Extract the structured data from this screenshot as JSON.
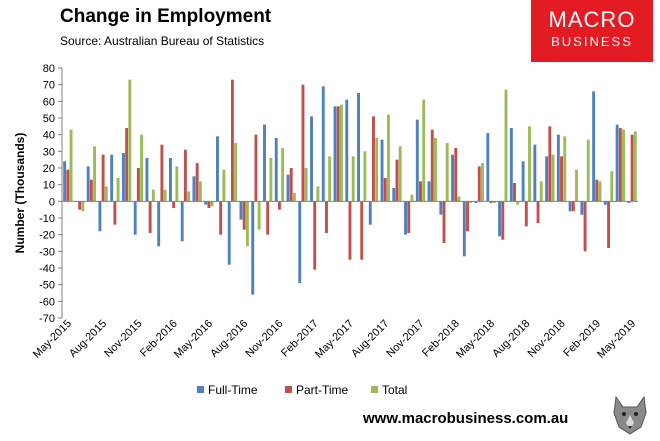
{
  "header": {
    "title": "Change in Employment",
    "source": "Source: Australian Bureau of Statistics"
  },
  "logo": {
    "line1": "MACRO",
    "line2": "BUSINESS"
  },
  "footer": {
    "website": "www.macrobusiness.com.au",
    "mascot_icon": "wolf-icon"
  },
  "colors": {
    "full_time": "#4f81bd",
    "part_time": "#c0504d",
    "total": "#9bbb59"
  },
  "chart_data": {
    "type": "bar",
    "title": "Change in Employment",
    "xlabel": "",
    "ylabel": "Number (Thousands)",
    "ylim": [
      -70,
      80
    ],
    "yticks": [
      -70,
      -60,
      -50,
      -40,
      -30,
      -20,
      -10,
      0,
      10,
      20,
      30,
      40,
      50,
      60,
      70,
      80
    ],
    "grid": false,
    "legend": "bottom",
    "categories": [
      "May-2015",
      "Jun-2015",
      "Jul-2015",
      "Aug-2015",
      "Sep-2015",
      "Oct-2015",
      "Nov-2015",
      "Dec-2015",
      "Jan-2016",
      "Feb-2016",
      "Mar-2016",
      "Apr-2016",
      "May-2016",
      "Jun-2016",
      "Jul-2016",
      "Aug-2016",
      "Sep-2016",
      "Oct-2016",
      "Nov-2016",
      "Dec-2016",
      "Jan-2017",
      "Feb-2017",
      "Mar-2017",
      "Apr-2017",
      "May-2017",
      "Jun-2017",
      "Jul-2017",
      "Aug-2017",
      "Sep-2017",
      "Oct-2017",
      "Nov-2017",
      "Dec-2017",
      "Jan-2018",
      "Feb-2018",
      "Mar-2018",
      "Apr-2018",
      "May-2018",
      "Jun-2018",
      "Jul-2018",
      "Aug-2018",
      "Sep-2018",
      "Oct-2018",
      "Nov-2018",
      "Dec-2018",
      "Jan-2019",
      "Feb-2019",
      "Mar-2019",
      "Apr-2019",
      "May-2019"
    ],
    "tick_labels": [
      "May-2015",
      "Aug-2015",
      "Nov-2015",
      "Feb-2016",
      "May-2016",
      "Aug-2016",
      "Nov-2016",
      "Feb-2017",
      "May-2017",
      "Aug-2017",
      "Nov-2017",
      "Feb-2018",
      "May-2018",
      "Aug-2018",
      "Nov-2018",
      "Feb-2019",
      "May-2019"
    ],
    "series": [
      {
        "name": "Full-Time",
        "values": [
          24,
          0,
          21,
          -18,
          28,
          29,
          -20,
          26,
          -27,
          26,
          -24,
          15,
          -2,
          39,
          -38,
          -11,
          -56,
          46,
          38,
          16,
          -49,
          51,
          69,
          57,
          61,
          65,
          -14,
          37,
          8,
          -20,
          49,
          12,
          -8,
          28,
          -33,
          -1,
          41,
          -21,
          44,
          24,
          34,
          27,
          40,
          -6,
          -8,
          66,
          -2,
          46,
          -1
        ]
      },
      {
        "name": "Part-Time",
        "values": [
          19,
          -5,
          13,
          28,
          -14,
          44,
          20,
          -19,
          34,
          -4,
          31,
          23,
          -4,
          -20,
          73,
          -17,
          40,
          -20,
          -5,
          20,
          70,
          -41,
          -19,
          57,
          -35,
          -35,
          51,
          14,
          25,
          -19,
          12,
          43,
          -25,
          32,
          -18,
          21,
          -1,
          -23,
          11,
          -15,
          -13,
          45,
          27,
          -6,
          -30,
          13,
          -28,
          44,
          40
        ]
      },
      {
        "name": "Total",
        "values": [
          43,
          -6,
          33,
          9,
          14,
          73,
          40,
          7,
          7,
          21,
          6,
          12,
          -3,
          19,
          35,
          -27,
          -17,
          26,
          32,
          5,
          20,
          9,
          27,
          58,
          27,
          30,
          38,
          52,
          33,
          4,
          61,
          38,
          35,
          3,
          -1,
          23,
          -1,
          67,
          -2,
          45,
          12,
          28,
          39,
          19,
          37,
          12,
          18,
          43,
          42
        ]
      }
    ]
  }
}
